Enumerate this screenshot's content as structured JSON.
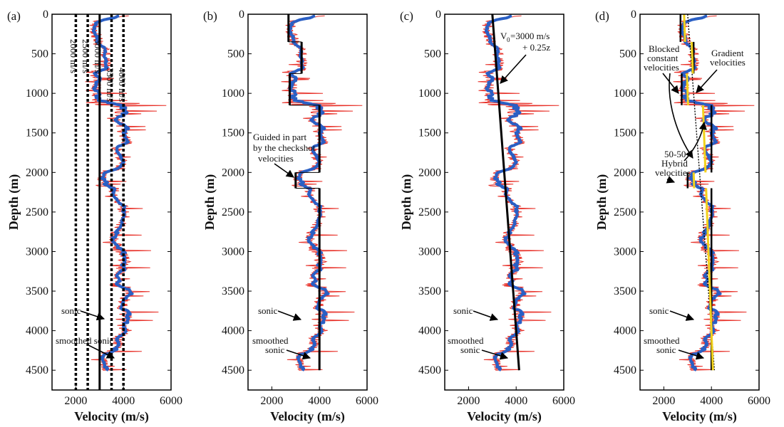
{
  "chart_data": [
    {
      "panel": "(a)",
      "type": "line",
      "xlabel": "Velocity (m/s)",
      "ylabel": "Depth (m)",
      "xlim": [
        1000,
        6000
      ],
      "ylim": [
        4750,
        0
      ],
      "xticks": [
        2000,
        4000,
        6000
      ],
      "yticks": [
        0,
        500,
        1000,
        1500,
        2000,
        2500,
        3000,
        3500,
        4000,
        4500
      ],
      "series": [
        {
          "name": "sonic",
          "color": "#e8322a"
        },
        {
          "name": "smoothed sonic",
          "color": "#2a5fc4"
        },
        {
          "name": "constant velocity lines",
          "color": "#000000",
          "values": [
            2000,
            2500,
            3000,
            3500,
            4000
          ]
        }
      ],
      "annotations": [
        "2000 m/s",
        "2500 m/s",
        "3000 m/s",
        "3500 m/s",
        "4000 m/s",
        "sonic",
        "smoothed sonic"
      ]
    },
    {
      "panel": "(b)",
      "type": "line",
      "xlabel": "Velocity (m/s)",
      "ylabel": "Depth (m)",
      "xlim": [
        1000,
        6000
      ],
      "ylim": [
        4750,
        0
      ],
      "xticks": [
        2000,
        4000,
        6000
      ],
      "yticks": [
        0,
        500,
        1000,
        1500,
        2000,
        2500,
        3000,
        3500,
        4000,
        4500
      ],
      "series": [
        {
          "name": "sonic",
          "color": "#e8322a"
        },
        {
          "name": "smoothed sonic",
          "color": "#2a5fc4"
        },
        {
          "name": "blocked velocities",
          "color": "#000000",
          "blocks": [
            [
              0,
              350,
              2700
            ],
            [
              350,
              750,
              3250
            ],
            [
              750,
              1150,
              2750
            ],
            [
              1150,
              2000,
              4000
            ],
            [
              2000,
              2200,
              3000
            ],
            [
              2200,
              4500,
              4000
            ]
          ]
        }
      ],
      "annotations": [
        "Guided in part",
        "by the checkshot",
        "velocities",
        "sonic",
        "smoothed",
        "sonic"
      ]
    },
    {
      "panel": "(c)",
      "type": "line",
      "xlabel": "Velocity (m/s)",
      "ylabel": "Depth (m)",
      "xlim": [
        1000,
        6000
      ],
      "ylim": [
        4750,
        0
      ],
      "xticks": [
        2000,
        4000,
        6000
      ],
      "yticks": [
        0,
        500,
        1000,
        1500,
        2000,
        2500,
        3000,
        3500,
        4000,
        4500
      ],
      "series": [
        {
          "name": "sonic",
          "color": "#e8322a"
        },
        {
          "name": "smoothed sonic",
          "color": "#2a5fc4"
        },
        {
          "name": "gradient",
          "color": "#000000",
          "v0": 3000,
          "k": 0.25
        }
      ],
      "annotations": [
        "V",
        "0",
        "=3000 m/s",
        "+ 0.25z",
        "sonic",
        "smoothed",
        "sonic"
      ]
    },
    {
      "panel": "(d)",
      "type": "line",
      "xlabel": "Velocity (m/s)",
      "ylabel": "Depth (m)",
      "xlim": [
        1000,
        6000
      ],
      "ylim": [
        4750,
        0
      ],
      "xticks": [
        2000,
        4000,
        6000
      ],
      "yticks": [
        0,
        500,
        1000,
        1500,
        2000,
        2500,
        3000,
        3500,
        4000,
        4500
      ],
      "series": [
        {
          "name": "sonic",
          "color": "#e8322a"
        },
        {
          "name": "smoothed sonic",
          "color": "#2a5fc4"
        },
        {
          "name": "gradient velocities",
          "color": "#000000",
          "v0": 3000,
          "k": 0.25
        },
        {
          "name": "blocked constant velocities",
          "color": "#000000"
        },
        {
          "name": "50-50 hybrid velocities",
          "color": "#f2d21b"
        }
      ],
      "annotations": [
        "Blocked",
        "constant",
        "velocities",
        "Gradient",
        "velocities",
        "50-50",
        "Hybrid",
        "velocities",
        "sonic",
        "smoothed",
        "sonic"
      ]
    }
  ]
}
